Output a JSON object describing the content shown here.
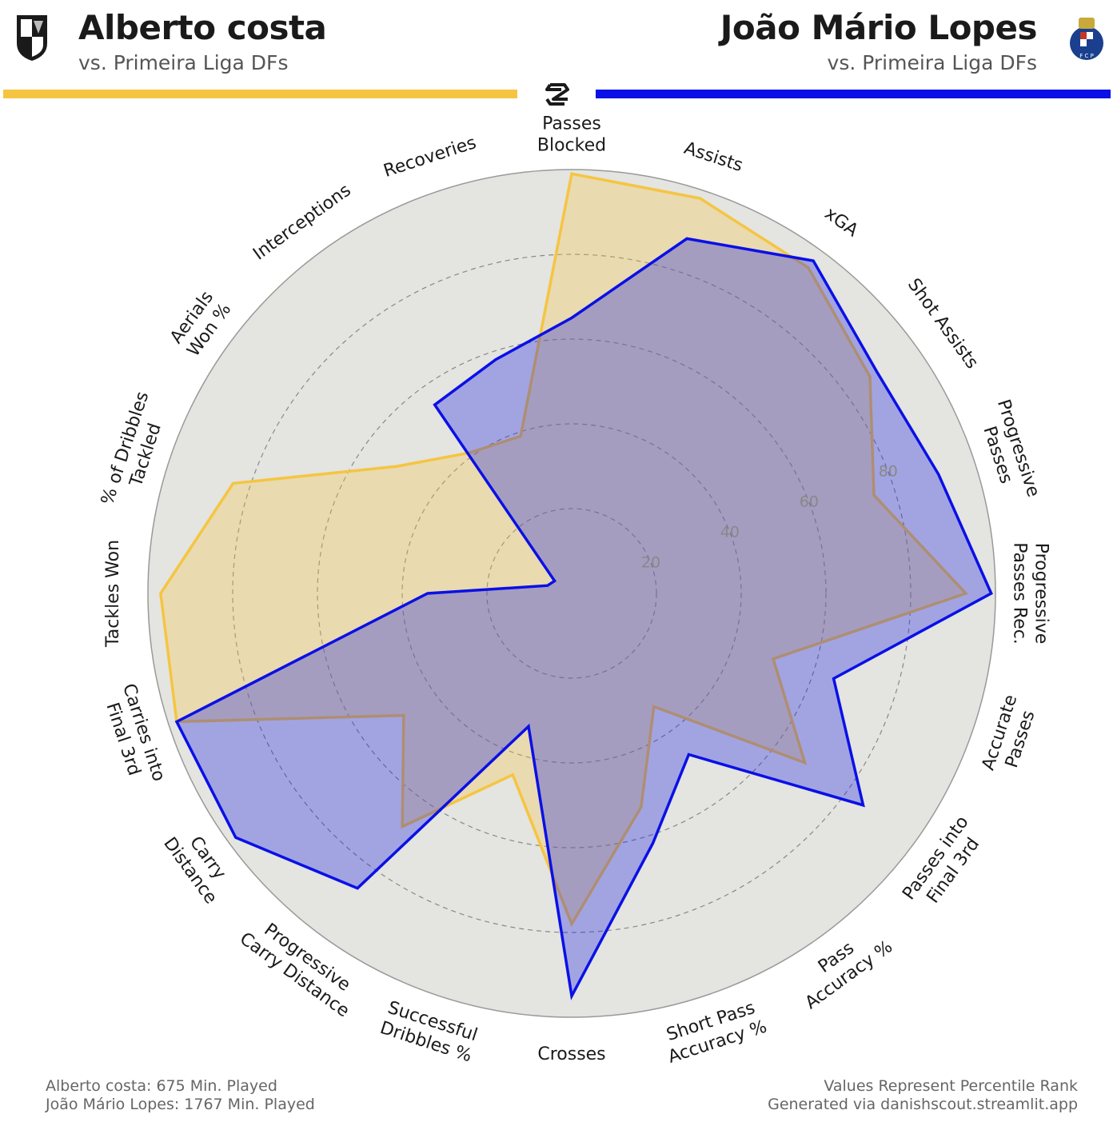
{
  "header": {
    "left": {
      "name": "Alberto costa",
      "subtitle": "vs. Primeira Liga DFs",
      "color": "#f5c542"
    },
    "right": {
      "name": "João Mário Lopes",
      "subtitle": "vs. Primeira Liga DFs",
      "color": "#0a10e6"
    }
  },
  "footer": {
    "left_line1": "Alberto costa: 675 Min. Played",
    "left_line2": "João Mário Lopes: 1767 Min. Played",
    "right_line1": "Values Represent Percentile Rank",
    "right_line2": "Generated via danishscout.streamlit.app"
  },
  "chart_data": {
    "type": "radar",
    "title": "",
    "rlim": [
      0,
      100
    ],
    "ring_ticks": [
      20,
      40,
      60,
      80
    ],
    "ring_tick_labels": [
      "20",
      "40",
      "60",
      "80"
    ],
    "grid": true,
    "categories": [
      "Passes\nBlocked",
      "Assists",
      "xGA",
      "Shot Assists",
      "Progressive\nPasses",
      "Progressive\nPasses Rec.",
      "Accurate\nPasses",
      "Passes into\nFinal 3rd",
      "Pass\nAccuracy %",
      "Short Pass\nAccuracy %",
      "Crosses",
      "Successful\nDribbles %",
      "Progressive\nCarry Distance",
      "Carry\nDistance",
      "Carries into\nFinal 3rd",
      "Tackles Won",
      "% of Dribbles\nTackled",
      "Aerials\nWon %",
      "Interceptions",
      "Recoveries"
    ],
    "series": [
      {
        "name": "Alberto costa",
        "color": "#f5c542",
        "values": [
          99,
          98,
          95,
          87,
          75,
          93,
          50,
          68,
          33,
          53,
          78,
          45,
          68,
          49,
          98,
          97,
          84,
          51,
          41,
          39
        ]
      },
      {
        "name": "João Mário Lopes",
        "color": "#0a10e6",
        "values": [
          65,
          88,
          97,
          89,
          91,
          99,
          65,
          85,
          47,
          62,
          95,
          33,
          86,
          98,
          98,
          34,
          6,
          5,
          55,
          58
        ]
      }
    ]
  }
}
